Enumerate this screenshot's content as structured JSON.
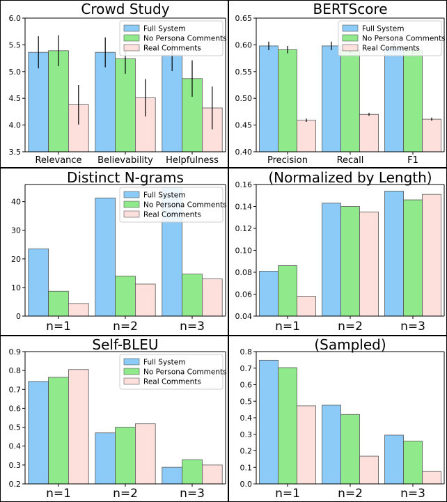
{
  "colors": {
    "full": "#8ccbf8",
    "nopersona": "#90ea8c",
    "real": "#fde0dc"
  },
  "chart_data": [
    {
      "type": "bar",
      "title": "Crowd Study",
      "categories": [
        "Relevance",
        "Believability",
        "Helpfulness"
      ],
      "legend": [
        "Full System",
        "No Persona Comments",
        "Real Comments"
      ],
      "legend_position": "top-right",
      "ylim": [
        3.5,
        6.0
      ],
      "yticks": [
        "3.5",
        "4.0",
        "4.5",
        "5.0",
        "5.5",
        "6.0"
      ],
      "series": [
        {
          "name": "Full System",
          "values": [
            5.36,
            5.36,
            5.31
          ],
          "errors": [
            0.3,
            0.28,
            0.3
          ]
        },
        {
          "name": "No Persona Comments",
          "values": [
            5.39,
            5.24,
            4.87
          ],
          "errors": [
            0.29,
            0.28,
            0.34
          ]
        },
        {
          "name": "Real Comments",
          "values": [
            4.38,
            4.51,
            4.32
          ],
          "errors": [
            0.37,
            0.35,
            0.4
          ]
        }
      ]
    },
    {
      "type": "bar",
      "title": "BERTScore",
      "categories": [
        "Precision",
        "Recall",
        "F1"
      ],
      "legend": [
        "Full System",
        "No Persona Comments",
        "Real Comments"
      ],
      "legend_position": "top-right",
      "ylim": [
        0.4,
        0.65
      ],
      "yticks": [
        "0.40",
        "0.45",
        "0.50",
        "0.55",
        "0.60",
        "0.65"
      ],
      "series": [
        {
          "name": "Full System",
          "values": [
            0.598,
            0.598,
            0.596
          ],
          "errors": [
            0.008,
            0.008,
            0.008
          ]
        },
        {
          "name": "No Persona Comments",
          "values": [
            0.591,
            0.591,
            0.59
          ],
          "errors": [
            0.007,
            0.007,
            0.007
          ]
        },
        {
          "name": "Real Comments",
          "values": [
            0.459,
            0.47,
            0.461
          ],
          "errors": [
            0.003,
            0.003,
            0.003
          ]
        }
      ]
    },
    {
      "type": "bar",
      "title": "Distinct N-grams",
      "categories": [
        "n=1",
        "n=2",
        "n=3"
      ],
      "legend": [
        "Full System",
        "No Persona Comments",
        "Real Comments"
      ],
      "legend_position": "top-right",
      "ylim": [
        0,
        46
      ],
      "yticks": [
        "0",
        "10",
        "20",
        "30",
        "40"
      ],
      "series": [
        {
          "name": "Full System",
          "values": [
            23.5,
            41.3,
            45.0
          ]
        },
        {
          "name": "No Persona Comments",
          "values": [
            8.7,
            14.0,
            14.7
          ]
        },
        {
          "name": "Real Comments",
          "values": [
            4.4,
            11.2,
            13.0
          ]
        }
      ]
    },
    {
      "type": "bar",
      "title": "(Normalized by Length)",
      "categories": [
        "n=1",
        "n=2",
        "n=3"
      ],
      "legend": [],
      "ylim": [
        0.04,
        0.16
      ],
      "yticks": [
        "0.04",
        "0.06",
        "0.08",
        "0.10",
        "0.12",
        "0.14",
        "0.16"
      ],
      "series": [
        {
          "name": "Full System",
          "values": [
            0.081,
            0.143,
            0.154
          ]
        },
        {
          "name": "No Persona Comments",
          "values": [
            0.086,
            0.14,
            0.146
          ]
        },
        {
          "name": "Real Comments",
          "values": [
            0.058,
            0.135,
            0.151
          ]
        }
      ]
    },
    {
      "type": "bar",
      "title": "Self-BLEU",
      "categories": [
        "n=1",
        "n=2",
        "n=3"
      ],
      "legend": [
        "Full System",
        "No Persona Comments",
        "Real Comments"
      ],
      "legend_position": "top-right",
      "ylim": [
        0.2,
        0.9
      ],
      "yticks": [
        "0.2",
        "0.3",
        "0.4",
        "0.5",
        "0.6",
        "0.7",
        "0.8",
        "0.9"
      ],
      "series": [
        {
          "name": "Full System",
          "values": [
            0.742,
            0.47,
            0.288
          ]
        },
        {
          "name": "No Persona Comments",
          "values": [
            0.764,
            0.5,
            0.328
          ]
        },
        {
          "name": "Real Comments",
          "values": [
            0.805,
            0.518,
            0.3
          ]
        }
      ]
    },
    {
      "type": "bar",
      "title": "(Sampled)",
      "categories": [
        "n=1",
        "n=2",
        "n=3"
      ],
      "legend": [],
      "ylim": [
        0.0,
        0.8
      ],
      "yticks": [
        "0.0",
        "0.1",
        "0.2",
        "0.3",
        "0.4",
        "0.5",
        "0.6",
        "0.7",
        "0.8"
      ],
      "series": [
        {
          "name": "Full System",
          "values": [
            0.748,
            0.476,
            0.295
          ]
        },
        {
          "name": "No Persona Comments",
          "values": [
            0.703,
            0.42,
            0.259
          ]
        },
        {
          "name": "Real Comments",
          "values": [
            0.472,
            0.168,
            0.075
          ]
        }
      ]
    }
  ]
}
